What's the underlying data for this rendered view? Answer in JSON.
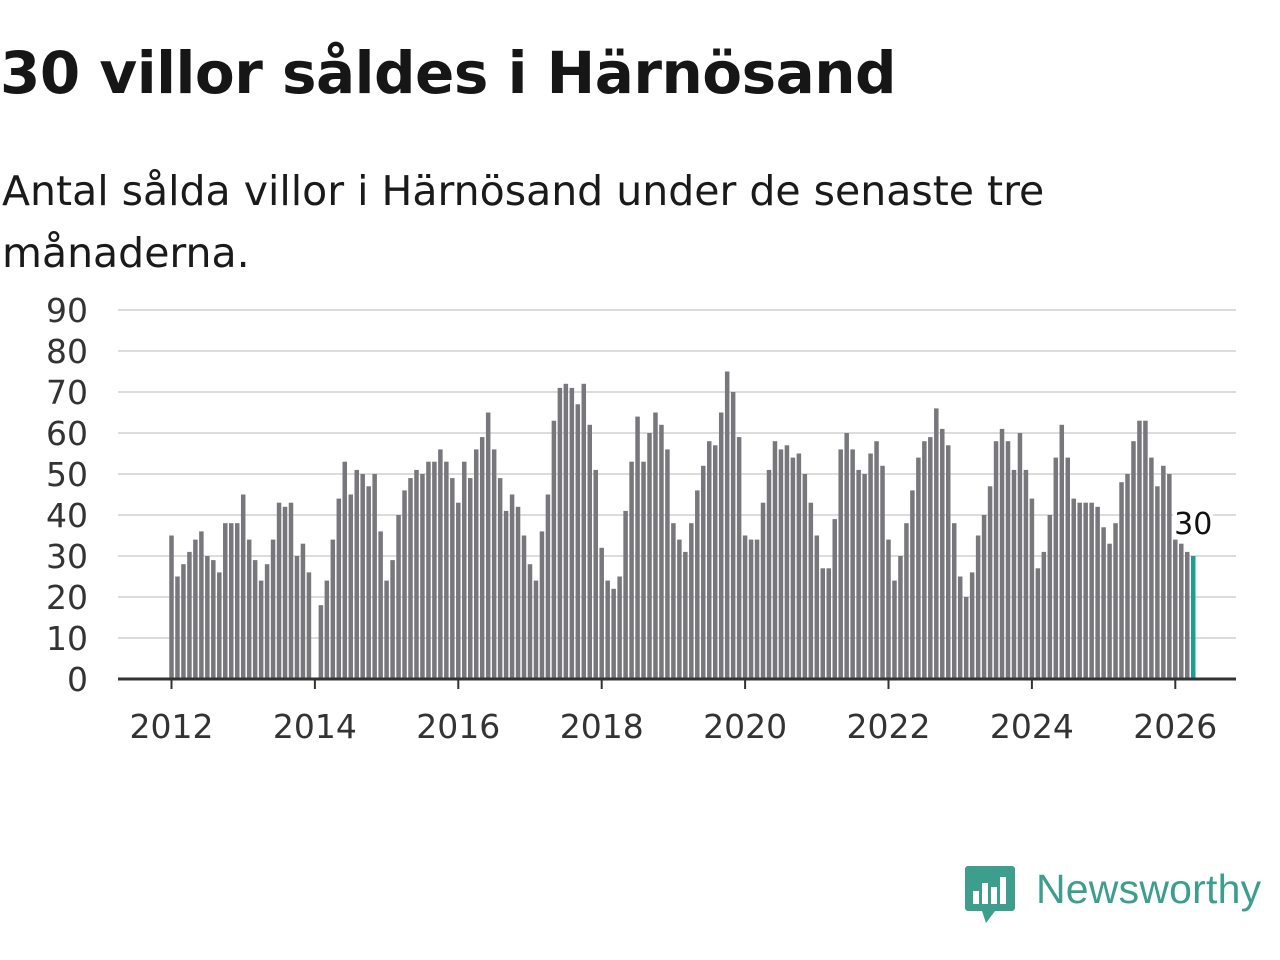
{
  "title": "30 villor såldes i Härnösand",
  "subtitle": "Antal sålda villor i Härnösand under de senaste tre månaderna.",
  "brand": "Newsworthy",
  "colors": {
    "bar": "#78777c",
    "highlight": "#1b9e94",
    "grid": "#dcdcdc",
    "brand": "#3d9e8e"
  },
  "chart_data": {
    "type": "bar",
    "title": "30 villor såldes i Härnösand",
    "xlabel": "",
    "ylabel": "",
    "ylim": [
      0,
      90
    ],
    "yticks": [
      "0",
      "10",
      "20",
      "30",
      "40",
      "50",
      "60",
      "70",
      "80",
      "90"
    ],
    "xticks": [
      "2012",
      "2014",
      "2016",
      "2018",
      "2020",
      "2022",
      "2024",
      "2026"
    ],
    "start_period": "2012-01",
    "frequency": "monthly",
    "values": [
      35,
      25,
      28,
      31,
      34,
      36,
      30,
      29,
      26,
      38,
      38,
      38,
      45,
      34,
      29,
      24,
      28,
      34,
      43,
      42,
      43,
      30,
      33,
      26,
      0,
      18,
      24,
      34,
      44,
      53,
      45,
      51,
      50,
      47,
      50,
      36,
      24,
      29,
      40,
      46,
      49,
      51,
      50,
      53,
      53,
      56,
      53,
      49,
      43,
      53,
      49,
      56,
      59,
      65,
      56,
      49,
      41,
      45,
      42,
      35,
      28,
      24,
      36,
      45,
      63,
      71,
      72,
      71,
      67,
      72,
      62,
      51,
      32,
      24,
      22,
      25,
      41,
      53,
      64,
      53,
      60,
      65,
      62,
      56,
      38,
      34,
      31,
      38,
      46,
      52,
      58,
      57,
      65,
      75,
      70,
      59,
      35,
      34,
      34,
      43,
      51,
      58,
      56,
      57,
      54,
      55,
      50,
      43,
      35,
      27,
      27,
      39,
      56,
      60,
      56,
      51,
      50,
      55,
      58,
      52,
      34,
      24,
      30,
      38,
      46,
      54,
      58,
      59,
      66,
      61,
      57,
      38,
      25,
      20,
      26,
      35,
      40,
      47,
      58,
      61,
      58,
      51,
      60,
      51,
      44,
      27,
      31,
      40,
      54,
      62,
      54,
      44,
      43,
      43,
      43,
      42,
      37,
      33,
      38,
      48,
      50,
      58,
      63,
      63,
      54,
      47,
      52,
      50,
      34,
      33,
      31,
      30
    ],
    "highlight_last": true,
    "annotation": {
      "label": "30",
      "value": 30
    }
  }
}
